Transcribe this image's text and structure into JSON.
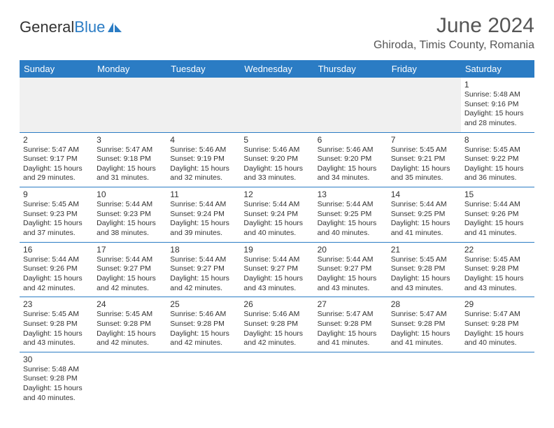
{
  "logo": {
    "text_general": "General",
    "text_blue": "Blue"
  },
  "header": {
    "month_title": "June 2024",
    "location": "Ghiroda, Timis County, Romania"
  },
  "colors": {
    "header_bg": "#2b7cc4",
    "header_text": "#ffffff",
    "border": "#2b7cc4",
    "logo_blue": "#2b7cc4",
    "text": "#333333",
    "blank_bg": "#f0f0f0"
  },
  "day_names": [
    "Sunday",
    "Monday",
    "Tuesday",
    "Wednesday",
    "Thursday",
    "Friday",
    "Saturday"
  ],
  "weeks": [
    [
      null,
      null,
      null,
      null,
      null,
      null,
      {
        "num": "1",
        "sunrise": "Sunrise: 5:48 AM",
        "sunset": "Sunset: 9:16 PM",
        "daylight": "Daylight: 15 hours and 28 minutes."
      }
    ],
    [
      {
        "num": "2",
        "sunrise": "Sunrise: 5:47 AM",
        "sunset": "Sunset: 9:17 PM",
        "daylight": "Daylight: 15 hours and 29 minutes."
      },
      {
        "num": "3",
        "sunrise": "Sunrise: 5:47 AM",
        "sunset": "Sunset: 9:18 PM",
        "daylight": "Daylight: 15 hours and 31 minutes."
      },
      {
        "num": "4",
        "sunrise": "Sunrise: 5:46 AM",
        "sunset": "Sunset: 9:19 PM",
        "daylight": "Daylight: 15 hours and 32 minutes."
      },
      {
        "num": "5",
        "sunrise": "Sunrise: 5:46 AM",
        "sunset": "Sunset: 9:20 PM",
        "daylight": "Daylight: 15 hours and 33 minutes."
      },
      {
        "num": "6",
        "sunrise": "Sunrise: 5:46 AM",
        "sunset": "Sunset: 9:20 PM",
        "daylight": "Daylight: 15 hours and 34 minutes."
      },
      {
        "num": "7",
        "sunrise": "Sunrise: 5:45 AM",
        "sunset": "Sunset: 9:21 PM",
        "daylight": "Daylight: 15 hours and 35 minutes."
      },
      {
        "num": "8",
        "sunrise": "Sunrise: 5:45 AM",
        "sunset": "Sunset: 9:22 PM",
        "daylight": "Daylight: 15 hours and 36 minutes."
      }
    ],
    [
      {
        "num": "9",
        "sunrise": "Sunrise: 5:45 AM",
        "sunset": "Sunset: 9:23 PM",
        "daylight": "Daylight: 15 hours and 37 minutes."
      },
      {
        "num": "10",
        "sunrise": "Sunrise: 5:44 AM",
        "sunset": "Sunset: 9:23 PM",
        "daylight": "Daylight: 15 hours and 38 minutes."
      },
      {
        "num": "11",
        "sunrise": "Sunrise: 5:44 AM",
        "sunset": "Sunset: 9:24 PM",
        "daylight": "Daylight: 15 hours and 39 minutes."
      },
      {
        "num": "12",
        "sunrise": "Sunrise: 5:44 AM",
        "sunset": "Sunset: 9:24 PM",
        "daylight": "Daylight: 15 hours and 40 minutes."
      },
      {
        "num": "13",
        "sunrise": "Sunrise: 5:44 AM",
        "sunset": "Sunset: 9:25 PM",
        "daylight": "Daylight: 15 hours and 40 minutes."
      },
      {
        "num": "14",
        "sunrise": "Sunrise: 5:44 AM",
        "sunset": "Sunset: 9:25 PM",
        "daylight": "Daylight: 15 hours and 41 minutes."
      },
      {
        "num": "15",
        "sunrise": "Sunrise: 5:44 AM",
        "sunset": "Sunset: 9:26 PM",
        "daylight": "Daylight: 15 hours and 41 minutes."
      }
    ],
    [
      {
        "num": "16",
        "sunrise": "Sunrise: 5:44 AM",
        "sunset": "Sunset: 9:26 PM",
        "daylight": "Daylight: 15 hours and 42 minutes."
      },
      {
        "num": "17",
        "sunrise": "Sunrise: 5:44 AM",
        "sunset": "Sunset: 9:27 PM",
        "daylight": "Daylight: 15 hours and 42 minutes."
      },
      {
        "num": "18",
        "sunrise": "Sunrise: 5:44 AM",
        "sunset": "Sunset: 9:27 PM",
        "daylight": "Daylight: 15 hours and 42 minutes."
      },
      {
        "num": "19",
        "sunrise": "Sunrise: 5:44 AM",
        "sunset": "Sunset: 9:27 PM",
        "daylight": "Daylight: 15 hours and 43 minutes."
      },
      {
        "num": "20",
        "sunrise": "Sunrise: 5:44 AM",
        "sunset": "Sunset: 9:27 PM",
        "daylight": "Daylight: 15 hours and 43 minutes."
      },
      {
        "num": "21",
        "sunrise": "Sunrise: 5:45 AM",
        "sunset": "Sunset: 9:28 PM",
        "daylight": "Daylight: 15 hours and 43 minutes."
      },
      {
        "num": "22",
        "sunrise": "Sunrise: 5:45 AM",
        "sunset": "Sunset: 9:28 PM",
        "daylight": "Daylight: 15 hours and 43 minutes."
      }
    ],
    [
      {
        "num": "23",
        "sunrise": "Sunrise: 5:45 AM",
        "sunset": "Sunset: 9:28 PM",
        "daylight": "Daylight: 15 hours and 43 minutes."
      },
      {
        "num": "24",
        "sunrise": "Sunrise: 5:45 AM",
        "sunset": "Sunset: 9:28 PM",
        "daylight": "Daylight: 15 hours and 42 minutes."
      },
      {
        "num": "25",
        "sunrise": "Sunrise: 5:46 AM",
        "sunset": "Sunset: 9:28 PM",
        "daylight": "Daylight: 15 hours and 42 minutes."
      },
      {
        "num": "26",
        "sunrise": "Sunrise: 5:46 AM",
        "sunset": "Sunset: 9:28 PM",
        "daylight": "Daylight: 15 hours and 42 minutes."
      },
      {
        "num": "27",
        "sunrise": "Sunrise: 5:47 AM",
        "sunset": "Sunset: 9:28 PM",
        "daylight": "Daylight: 15 hours and 41 minutes."
      },
      {
        "num": "28",
        "sunrise": "Sunrise: 5:47 AM",
        "sunset": "Sunset: 9:28 PM",
        "daylight": "Daylight: 15 hours and 41 minutes."
      },
      {
        "num": "29",
        "sunrise": "Sunrise: 5:47 AM",
        "sunset": "Sunset: 9:28 PM",
        "daylight": "Daylight: 15 hours and 40 minutes."
      }
    ],
    [
      {
        "num": "30",
        "sunrise": "Sunrise: 5:48 AM",
        "sunset": "Sunset: 9:28 PM",
        "daylight": "Daylight: 15 hours and 40 minutes."
      },
      null,
      null,
      null,
      null,
      null,
      null
    ]
  ]
}
